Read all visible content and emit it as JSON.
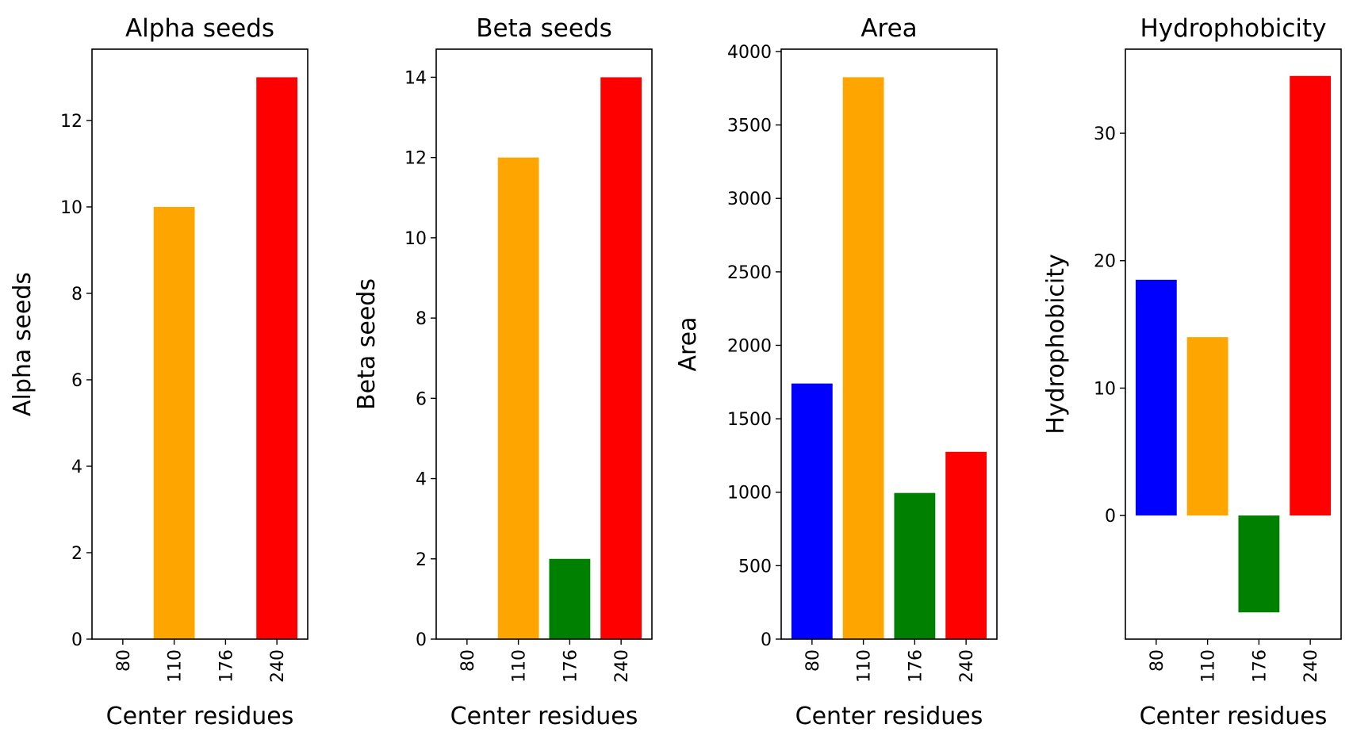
{
  "chart_data": [
    {
      "type": "bar",
      "title": "Alpha seeds",
      "xlabel": "Center residues",
      "ylabel": "Alpha seeds",
      "categories": [
        "80",
        "110",
        "176",
        "240"
      ],
      "values": [
        0,
        10,
        0,
        13
      ],
      "colors": [
        "#0000ff",
        "#ffa500",
        "#008000",
        "#ff0000"
      ],
      "ylim": [
        0,
        13.65
      ],
      "yticks": [
        0,
        2,
        4,
        6,
        8,
        10,
        12
      ],
      "ytick_labels": [
        "0",
        "2",
        "4",
        "6",
        "8",
        "10",
        "12"
      ],
      "grid": false
    },
    {
      "type": "bar",
      "title": "Beta seeds",
      "xlabel": "Center residues",
      "ylabel": "Beta seeds",
      "categories": [
        "80",
        "110",
        "176",
        "240"
      ],
      "values": [
        0,
        12,
        2,
        14
      ],
      "colors": [
        "#0000ff",
        "#ffa500",
        "#008000",
        "#ff0000"
      ],
      "ylim": [
        0,
        14.7
      ],
      "yticks": [
        0,
        2,
        4,
        6,
        8,
        10,
        12,
        14
      ],
      "ytick_labels": [
        "0",
        "2",
        "4",
        "6",
        "8",
        "10",
        "12",
        "14"
      ],
      "grid": false
    },
    {
      "type": "bar",
      "title": "Area",
      "xlabel": "Center residues",
      "ylabel": "Area",
      "categories": [
        "80",
        "110",
        "176",
        "240"
      ],
      "values": [
        1740,
        3825,
        995,
        1275
      ],
      "colors": [
        "#0000ff",
        "#ffa500",
        "#008000",
        "#ff0000"
      ],
      "ylim": [
        0,
        4016
      ],
      "yticks": [
        0,
        500,
        1000,
        1500,
        2000,
        2500,
        3000,
        3500,
        4000
      ],
      "ytick_labels": [
        "0",
        "500",
        "1000",
        "1500",
        "2000",
        "2500",
        "3000",
        "3500",
        "4000"
      ],
      "grid": false
    },
    {
      "type": "bar",
      "title": "Hydrophobicity",
      "xlabel": "Center residues",
      "ylabel": "Hydrophobicity",
      "categories": [
        "80",
        "110",
        "176",
        "240"
      ],
      "values": [
        18.5,
        14.0,
        -7.6,
        34.5
      ],
      "colors": [
        "#0000ff",
        "#ffa500",
        "#008000",
        "#ff0000"
      ],
      "ylim": [
        -9.7,
        36.6
      ],
      "yticks": [
        0,
        10,
        20,
        30
      ],
      "ytick_labels": [
        "0",
        "10",
        "20",
        "30"
      ],
      "grid": false
    }
  ]
}
